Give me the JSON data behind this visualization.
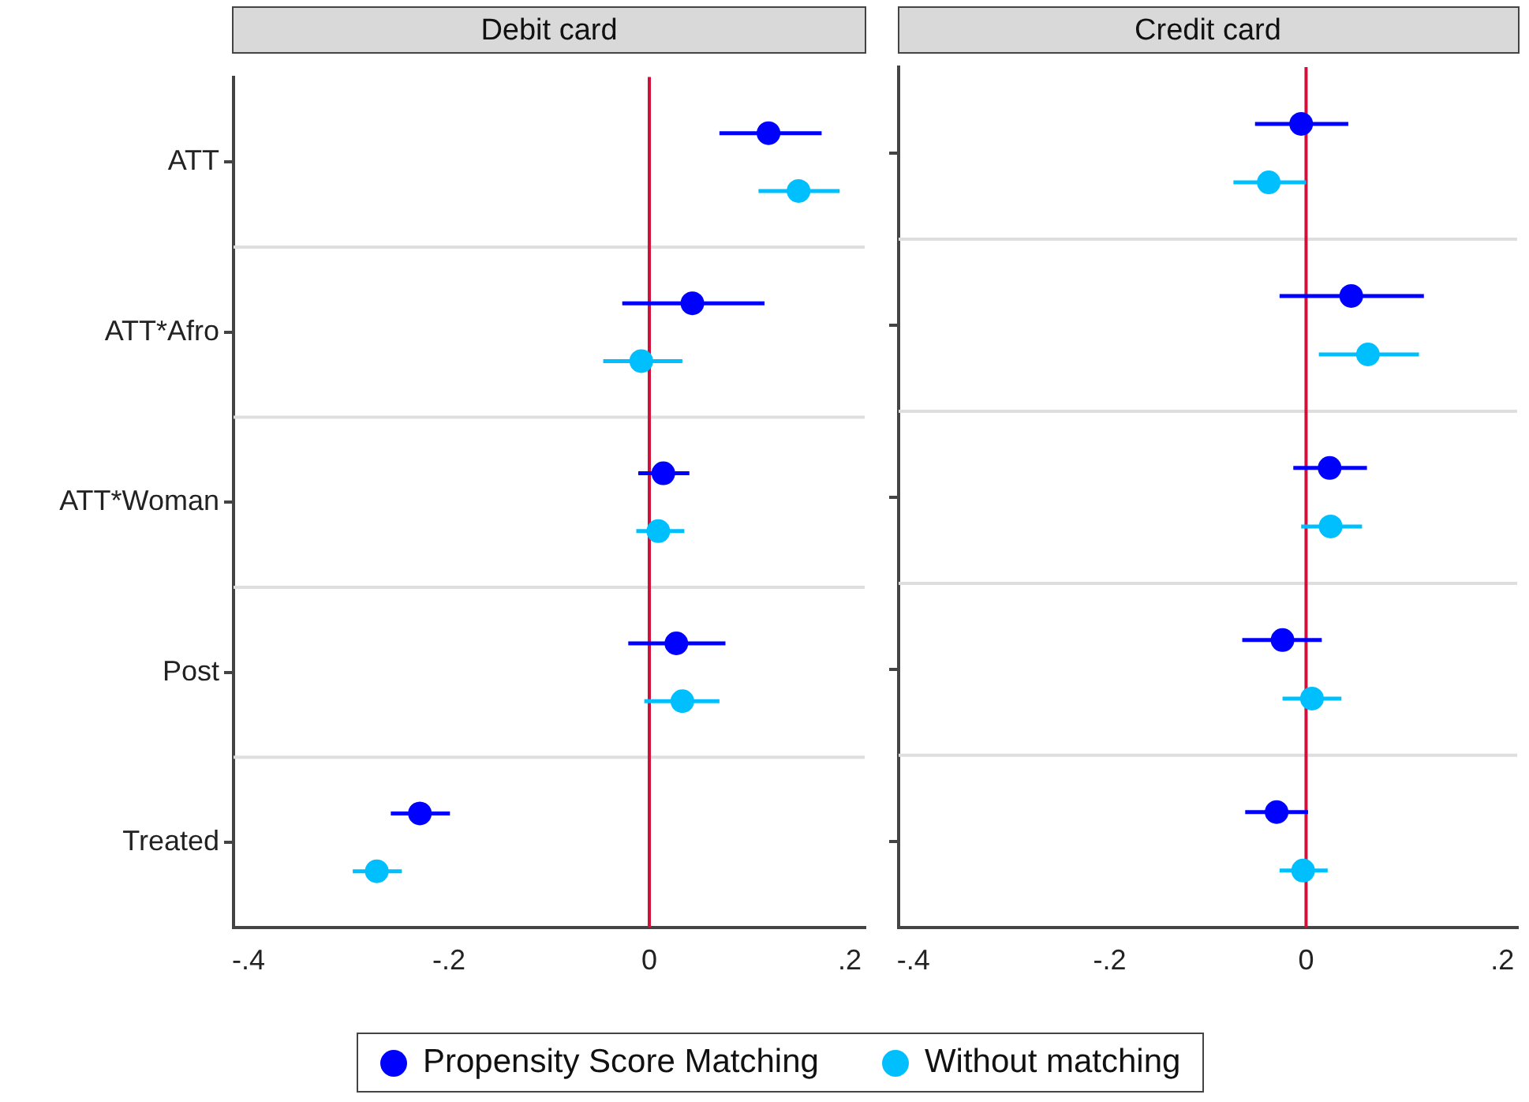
{
  "chart_data": [
    {
      "type": "scatter",
      "title": "Debit card",
      "orientation": "horizontal",
      "categories": [
        "ATT",
        "ATT*Afro",
        "ATT*Woman",
        "Post",
        "Treated"
      ],
      "series": [
        {
          "name": "Propensity Score Matching",
          "color": "#0000ff",
          "values": [
            0.119,
            0.043,
            0.014,
            0.027,
            -0.229
          ],
          "errors": [
            [
              0.07,
              0.172
            ],
            [
              -0.027,
              0.115
            ],
            [
              -0.011,
              0.04
            ],
            [
              -0.021,
              0.076
            ],
            [
              -0.258,
              -0.199
            ]
          ]
        },
        {
          "name": "Without matching",
          "color": "#00bfff",
          "values": [
            0.149,
            -0.008,
            0.009,
            0.033,
            -0.272
          ],
          "errors": [
            [
              0.109,
              0.19
            ],
            [
              -0.046,
              0.033
            ],
            [
              -0.013,
              0.035
            ],
            [
              -0.005,
              0.07
            ],
            [
              -0.296,
              -0.247
            ]
          ]
        }
      ],
      "xlim": [
        -0.415,
        0.215
      ],
      "xticks": [
        {
          "value": -0.4,
          "label": "-.4"
        },
        {
          "value": -0.2,
          "label": "-.2"
        },
        0,
        {
          "value": 0.2,
          "label": ".2"
        }
      ],
      "ref_lines": [
        {
          "axis": "x",
          "value": 0,
          "color": "#d0103a"
        }
      ],
      "grid": "y",
      "marker": "circle",
      "legend": "bottom"
    },
    {
      "type": "scatter",
      "title": "Credit card",
      "orientation": "horizontal",
      "categories": [
        "ATT",
        "ATT*Afro",
        "ATT*Woman",
        "Post",
        "Treated"
      ],
      "series": [
        {
          "name": "Propensity Score Matching",
          "color": "#0000ff",
          "values": [
            -0.005,
            0.046,
            0.024,
            -0.024,
            -0.03
          ],
          "errors": [
            [
              -0.052,
              0.043
            ],
            [
              -0.027,
              0.12
            ],
            [
              -0.013,
              0.062
            ],
            [
              -0.065,
              0.016
            ],
            [
              -0.062,
              0.002
            ]
          ]
        },
        {
          "name": "Without matching",
          "color": "#00bfff",
          "values": [
            -0.038,
            0.063,
            0.025,
            0.006,
            -0.003
          ],
          "errors": [
            [
              -0.074,
              0.0
            ],
            [
              0.013,
              0.115
            ],
            [
              -0.005,
              0.057
            ],
            [
              -0.024,
              0.036
            ],
            [
              -0.027,
              0.022
            ]
          ]
        }
      ],
      "xlim": [
        -0.415,
        0.215
      ],
      "xticks": [
        {
          "value": -0.4,
          "label": "-.4"
        },
        {
          "value": -0.2,
          "label": "-.2"
        },
        0,
        {
          "value": 0.2,
          "label": ".2"
        }
      ],
      "ref_lines": [
        {
          "axis": "x",
          "value": 0,
          "color": "#d0103a"
        }
      ],
      "grid": "y",
      "marker": "circle",
      "tick_labels": "x"
    }
  ]
}
